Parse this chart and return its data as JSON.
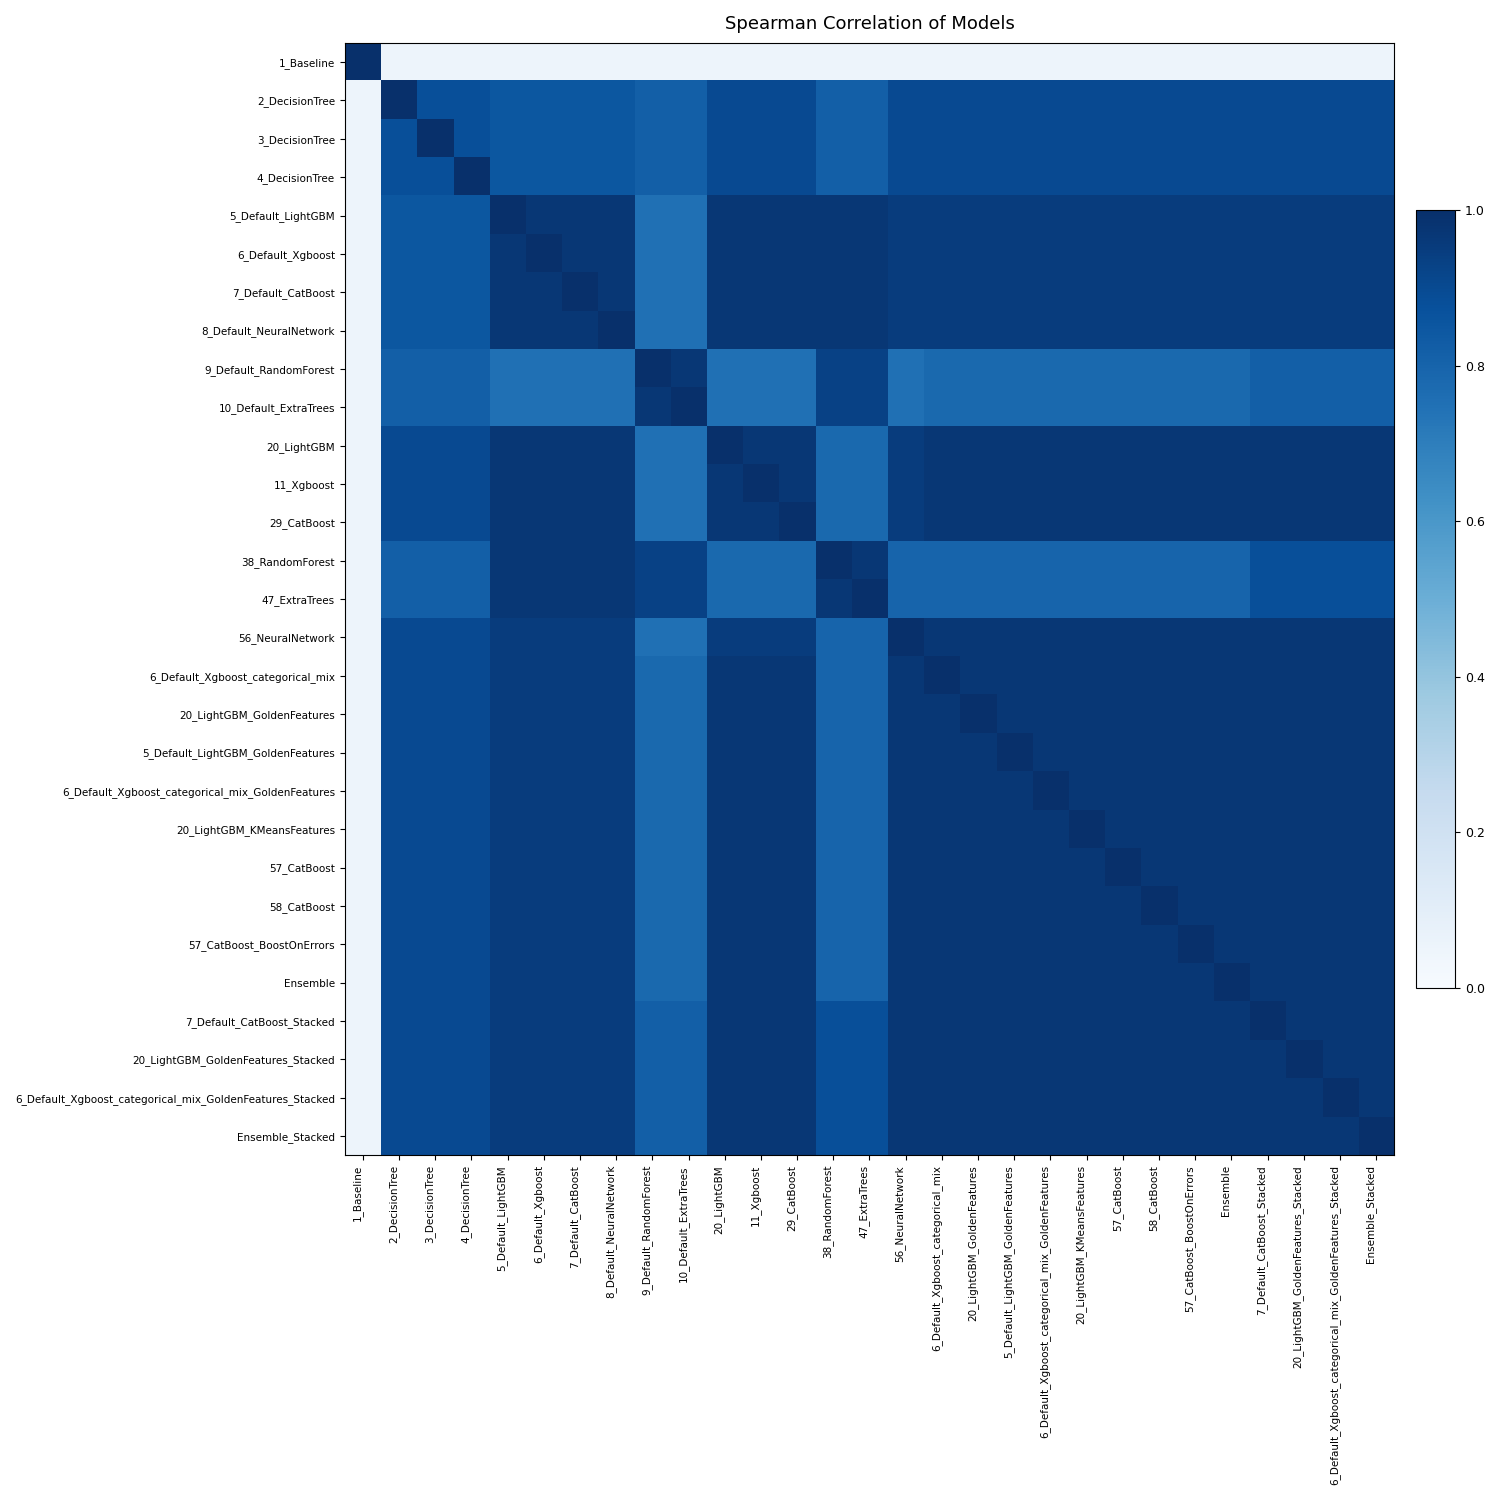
{
  "title": "Spearman Correlation of Models",
  "labels": [
    "1_Baseline",
    "2_DecisionTree",
    "3_DecisionTree",
    "4_DecisionTree",
    "5_Default_LightGBM",
    "6_Default_Xgboost",
    "7_Default_CatBoost",
    "8_Default_NeuralNetwork",
    "9_Default_RandomForest",
    "10_Default_ExtraTrees",
    "20_LightGBM",
    "11_Xgboost",
    "29_CatBoost",
    "38_RandomForest",
    "47_ExtraTrees",
    "56_NeuralNetwork",
    "6_Default_Xgboost_categorical_mix",
    "20_LightGBM_GoldenFeatures",
    "5_Default_LightGBM_GoldenFeatures",
    "6_Default_Xgboost_categorical_mix_GoldenFeatures",
    "20_LightGBM_KMeansFeatures",
    "57_CatBoost",
    "58_CatBoost",
    "57_CatBoost_BoostOnErrors",
    "Ensemble",
    "7_Default_CatBoost_Stacked",
    "20_LightGBM_GoldenFeatures_Stacked",
    "6_Default_Xgboost_categorical_mix_GoldenFeatures_Stacked",
    "Ensemble_Stacked"
  ],
  "colormap": "Blues",
  "vmin": 0.0,
  "vmax": 1.0,
  "figsize": [
    15,
    15
  ],
  "dpi": 100
}
